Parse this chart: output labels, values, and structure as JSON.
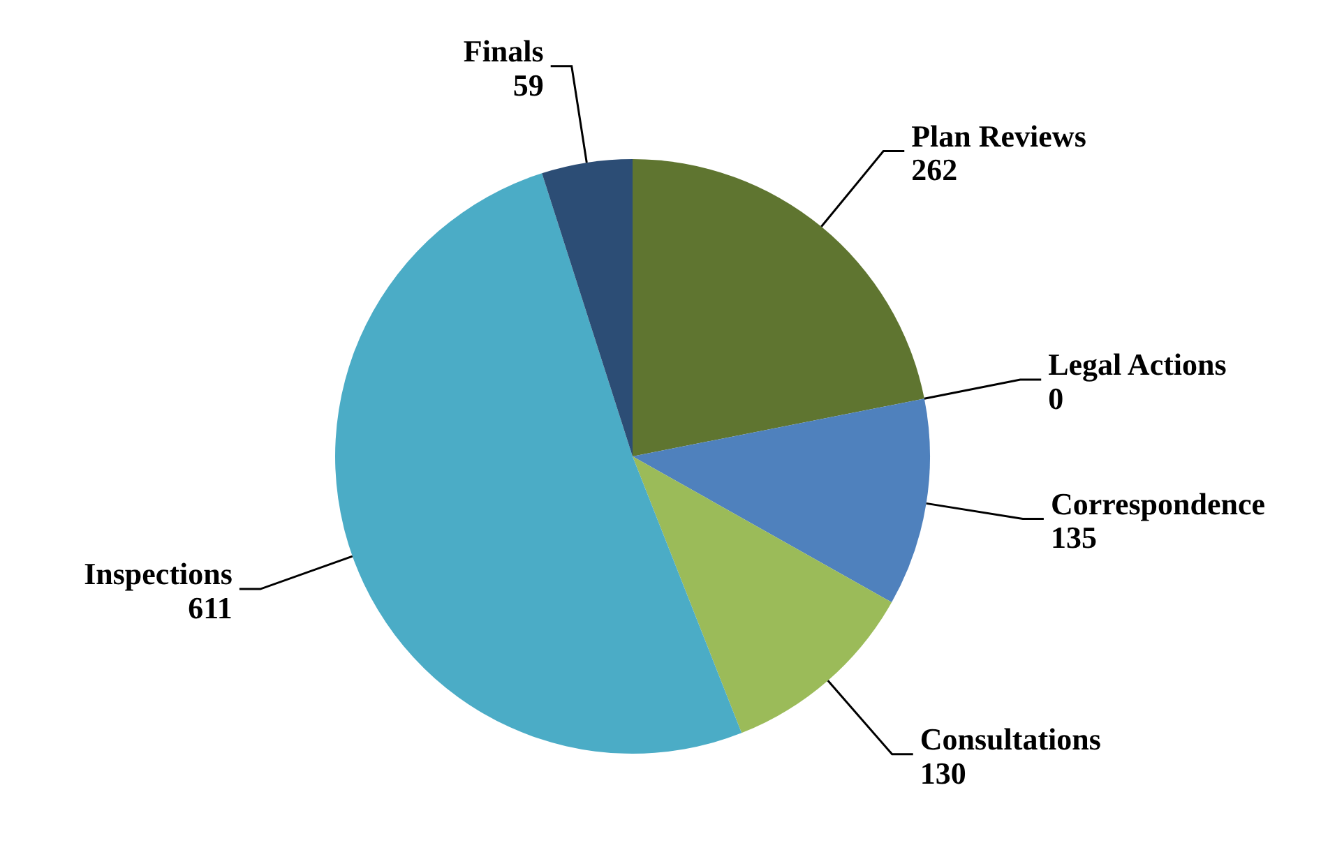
{
  "chart_data": {
    "type": "pie",
    "categories": [
      "Plan Reviews",
      "Legal Actions",
      "Correspondence",
      "Consultations",
      "Inspections",
      "Finals"
    ],
    "values": [
      262,
      0,
      135,
      130,
      611,
      59
    ],
    "colors": [
      "#5f7530",
      "#c0504d",
      "#4f81bd",
      "#9bbb59",
      "#4bacc6",
      "#2c4d75"
    ],
    "value_labels": [
      "262",
      "0",
      "135",
      "130",
      "611",
      "59"
    ]
  }
}
